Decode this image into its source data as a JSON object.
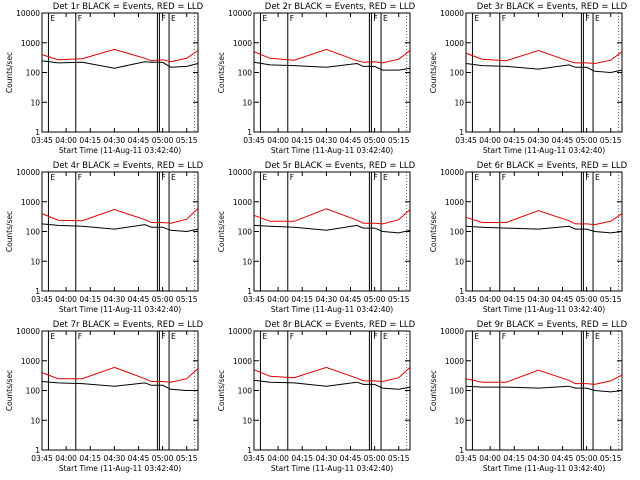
{
  "chart_data": {
    "type": "line",
    "x_tick_labels": [
      "03:45",
      "04:00",
      "04:15",
      "04:30",
      "04:45",
      "05:00",
      "05:15"
    ],
    "y_tick_labels": [
      "1",
      "10",
      "100",
      "1000",
      "10000"
    ],
    "ylabel": "Counts/sec",
    "xlabel": "Start Time (11-Aug-11 03:42:40)",
    "yscale": "log",
    "ylim": [
      1,
      10000
    ],
    "xlim_minutes_after_0345": [
      0,
      97
    ],
    "region_markers": [
      "E",
      "F",
      "F",
      "E"
    ],
    "series_legend": "BLACK = Events, RED = LLD",
    "panels": [
      {
        "title": "Det 1r BLACK = Events, RED = LLD",
        "x": [
          0,
          10,
          25,
          45,
          64,
          68,
          75,
          80,
          90,
          97
        ],
        "lld": [
          400,
          270,
          290,
          600,
          300,
          250,
          270,
          230,
          300,
          550
        ],
        "events": [
          250,
          210,
          220,
          140,
          230,
          220,
          220,
          150,
          160,
          200
        ]
      },
      {
        "title": "Det 2r BLACK = Events, RED = LLD",
        "x": [
          0,
          10,
          25,
          45,
          64,
          68,
          75,
          80,
          90,
          97
        ],
        "lld": [
          500,
          300,
          260,
          600,
          250,
          220,
          230,
          210,
          280,
          550
        ],
        "events": [
          220,
          180,
          170,
          150,
          200,
          160,
          160,
          120,
          120,
          140
        ]
      },
      {
        "title": "Det 3r BLACK = Events, RED = LLD",
        "x": [
          0,
          10,
          25,
          45,
          64,
          68,
          75,
          80,
          90,
          97
        ],
        "lld": [
          450,
          280,
          250,
          550,
          240,
          210,
          210,
          200,
          260,
          500
        ],
        "events": [
          200,
          170,
          160,
          130,
          180,
          150,
          150,
          110,
          100,
          120
        ]
      },
      {
        "title": "Det 4r BLACK = Events, RED = LLD",
        "x": [
          0,
          10,
          25,
          45,
          64,
          68,
          75,
          80,
          90,
          97
        ],
        "lld": [
          400,
          240,
          230,
          550,
          250,
          200,
          200,
          190,
          260,
          600
        ],
        "events": [
          180,
          160,
          150,
          120,
          170,
          140,
          140,
          110,
          100,
          120
        ]
      },
      {
        "title": "Det 5r BLACK = Events, RED = LLD",
        "x": [
          0,
          10,
          25,
          45,
          64,
          68,
          75,
          80,
          90,
          97
        ],
        "lld": [
          350,
          220,
          220,
          580,
          240,
          190,
          190,
          180,
          250,
          550
        ],
        "events": [
          160,
          150,
          140,
          110,
          160,
          130,
          130,
          100,
          90,
          110
        ]
      },
      {
        "title": "Det 6r BLACK = Events, RED = LLD",
        "x": [
          0,
          10,
          25,
          45,
          64,
          68,
          75,
          80,
          90,
          97
        ],
        "lld": [
          300,
          200,
          200,
          500,
          230,
          180,
          180,
          170,
          220,
          400
        ],
        "events": [
          150,
          140,
          130,
          120,
          150,
          120,
          120,
          100,
          90,
          100
        ]
      },
      {
        "title": "Det 7r BLACK = Events, RED = LLD",
        "x": [
          0,
          10,
          25,
          45,
          64,
          68,
          75,
          80,
          90,
          97
        ],
        "lld": [
          400,
          250,
          250,
          600,
          250,
          200,
          200,
          190,
          250,
          550
        ],
        "events": [
          200,
          180,
          170,
          140,
          180,
          150,
          150,
          110,
          100,
          100
        ]
      },
      {
        "title": "Det 8r BLACK = Events, RED = LLD",
        "x": [
          0,
          10,
          25,
          45,
          64,
          68,
          75,
          80,
          90,
          97
        ],
        "lld": [
          500,
          300,
          270,
          600,
          260,
          210,
          210,
          200,
          270,
          600
        ],
        "events": [
          220,
          190,
          180,
          140,
          190,
          160,
          160,
          120,
          110,
          130
        ]
      },
      {
        "title": "Det 9r BLACK = Events, RED = LLD",
        "x": [
          0,
          10,
          25,
          45,
          64,
          68,
          75,
          80,
          90,
          97
        ],
        "lld": [
          250,
          190,
          190,
          480,
          220,
          170,
          170,
          160,
          210,
          330
        ],
        "events": [
          140,
          130,
          130,
          120,
          140,
          120,
          120,
          100,
          90,
          100
        ]
      }
    ]
  }
}
